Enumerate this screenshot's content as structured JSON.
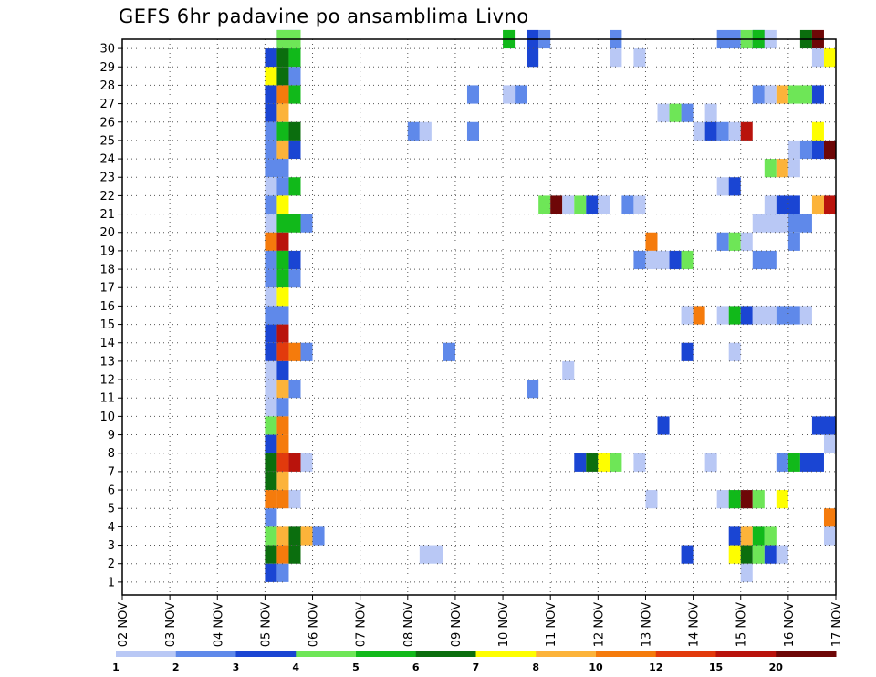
{
  "chart_data": {
    "type": "heatmap",
    "title": "GEFS 6hr padavine po ansamblima Livno",
    "x_ticks": [
      "02 NOV",
      "03 NOV",
      "04 NOV",
      "05 NOV",
      "06 NOV",
      "07 NOV",
      "08 NOV",
      "09 NOV",
      "10 NOV",
      "11 NOV",
      "12 NOV",
      "13 NOV",
      "14 NOV",
      "15 NOV",
      "16 NOV",
      "17 NOV"
    ],
    "y_ticks": [
      "1",
      "2",
      "3",
      "4",
      "5",
      "6",
      "7",
      "8",
      "9",
      "10",
      "11",
      "12",
      "13",
      "14",
      "15",
      "16",
      "17",
      "18",
      "19",
      "20",
      "21",
      "22",
      "23",
      "24",
      "25",
      "26",
      "27",
      "28",
      "29",
      "30"
    ],
    "x_range_days": [
      2,
      17
    ],
    "steps_per_day": 4,
    "colorbar": {
      "labels": [
        "1",
        "2",
        "3",
        "4",
        "5",
        "6",
        "7",
        "8",
        "10",
        "12",
        "15",
        "20"
      ],
      "colors": [
        "#b9c8f5",
        "#5f89ea",
        "#1a45d3",
        "#6ee657",
        "#11b91a",
        "#0b6e0e",
        "#fefe00",
        "#fcb33a",
        "#f57b0c",
        "#e23a0c",
        "#b9130c",
        "#6e0707"
      ]
    },
    "cells": [
      {
        "member": 30,
        "bands": [
          [
            13,
            2,
            2,
            1
          ]
        ]
      },
      {
        "member": 30,
        "bands": [
          [
            13,
            3,
            2,
            1
          ]
        ]
      },
      {
        "member": 30,
        "bands": [
          [
            34,
            0,
            1,
            1
          ],
          [
            35,
            1,
            1,
            1
          ]
        ]
      },
      {
        "member": 30,
        "bands": [
          [
            34,
            2,
            1,
            2
          ],
          [
            41,
            1,
            1,
            1
          ]
        ]
      },
      {
        "member": 30,
        "bands": [
          [
            32,
            4,
            1,
            1
          ],
          [
            50,
            1,
            2,
            1
          ],
          [
            52,
            3,
            1,
            1
          ],
          [
            53,
            2,
            1,
            1
          ]
        ]
      },
      {
        "member": 30,
        "bands": [
          [
            53,
            4,
            1,
            1
          ],
          [
            54,
            0,
            1,
            1
          ]
        ]
      },
      {
        "member": 30,
        "bands": [
          [
            57,
            5,
            1,
            1
          ],
          [
            58,
            11,
            1,
            1
          ]
        ]
      },
      {
        "member": 29,
        "bands": [
          [
            12,
            2,
            1,
            1
          ],
          [
            13,
            5,
            1,
            1
          ],
          [
            14,
            4,
            1,
            1
          ],
          [
            41,
            0,
            1,
            1
          ],
          [
            43,
            0,
            1,
            1
          ],
          [
            58,
            0,
            1,
            1
          ],
          [
            59,
            6,
            1,
            1
          ]
        ]
      },
      {
        "member": 28,
        "bands": [
          [
            12,
            6,
            1,
            1
          ],
          [
            13,
            5,
            1,
            1
          ],
          [
            14,
            1,
            1,
            1
          ]
        ]
      },
      {
        "member": 27,
        "bands": [
          [
            12,
            2,
            1,
            1
          ],
          [
            13,
            8,
            1,
            1
          ],
          [
            14,
            4,
            1,
            1
          ],
          [
            29,
            1,
            1,
            1
          ],
          [
            32,
            0,
            1,
            1
          ],
          [
            33,
            1,
            1,
            1
          ],
          [
            53,
            1,
            1,
            1
          ],
          [
            54,
            0,
            1,
            1
          ],
          [
            55,
            7,
            1,
            1
          ],
          [
            56,
            3,
            2,
            1
          ],
          [
            58,
            2,
            1,
            1
          ]
        ]
      },
      {
        "member": 26,
        "bands": [
          [
            12,
            2,
            1,
            1
          ],
          [
            13,
            7,
            1,
            1
          ],
          [
            45,
            0,
            1,
            1
          ],
          [
            46,
            3,
            1,
            1
          ],
          [
            47,
            1,
            1,
            1
          ],
          [
            49,
            0,
            1,
            1
          ]
        ]
      },
      {
        "member": 25,
        "bands": [
          [
            12,
            1,
            1,
            1
          ],
          [
            13,
            4,
            1,
            1
          ],
          [
            14,
            5,
            1,
            1
          ],
          [
            24,
            1,
            1,
            1
          ],
          [
            25,
            0,
            1,
            1
          ],
          [
            29,
            1,
            1,
            1
          ],
          [
            48,
            0,
            1,
            1
          ],
          [
            49,
            2,
            1,
            1
          ],
          [
            50,
            1,
            1,
            1
          ],
          [
            51,
            0,
            1,
            1
          ],
          [
            52,
            10,
            1,
            1
          ],
          [
            58,
            6,
            1,
            1
          ]
        ]
      },
      {
        "member": 24,
        "bands": [
          [
            12,
            1,
            1,
            1
          ],
          [
            13,
            7,
            1,
            1
          ],
          [
            14,
            2,
            1,
            1
          ],
          [
            56,
            0,
            1,
            1
          ],
          [
            57,
            1,
            1,
            1
          ],
          [
            58,
            2,
            1,
            1
          ],
          [
            59,
            11,
            1,
            1
          ]
        ]
      },
      {
        "member": 23,
        "bands": [
          [
            12,
            1,
            2,
            1
          ],
          [
            54,
            3,
            1,
            1
          ],
          [
            55,
            7,
            1,
            1
          ],
          [
            56,
            0,
            1,
            1
          ]
        ]
      },
      {
        "member": 22,
        "bands": [
          [
            12,
            0,
            1,
            1
          ],
          [
            13,
            1,
            1,
            1
          ],
          [
            14,
            4,
            1,
            1
          ],
          [
            50,
            0,
            1,
            1
          ],
          [
            51,
            2,
            1,
            1
          ]
        ]
      },
      {
        "member": 21,
        "bands": [
          [
            12,
            1,
            1,
            1
          ],
          [
            13,
            6,
            1,
            1
          ],
          [
            35,
            3,
            1,
            1
          ],
          [
            36,
            11,
            1,
            1
          ],
          [
            37,
            0,
            1,
            1
          ],
          [
            38,
            3,
            1,
            1
          ],
          [
            39,
            2,
            1,
            1
          ],
          [
            40,
            0,
            1,
            1
          ],
          [
            42,
            1,
            1,
            1
          ],
          [
            43,
            0,
            1,
            1
          ],
          [
            54,
            0,
            1,
            1
          ],
          [
            55,
            2,
            2,
            1
          ],
          [
            58,
            7,
            1,
            1
          ],
          [
            59,
            10,
            1,
            1
          ]
        ]
      },
      {
        "member": 20,
        "bands": [
          [
            12,
            0,
            1,
            1
          ],
          [
            13,
            4,
            2,
            1
          ],
          [
            15,
            1,
            1,
            1
          ],
          [
            53,
            0,
            3,
            1
          ],
          [
            56,
            1,
            2,
            1
          ]
        ]
      },
      {
        "member": 19,
        "bands": [
          [
            12,
            8,
            1,
            1
          ],
          [
            13,
            10,
            1,
            1
          ],
          [
            44,
            8,
            1,
            1
          ],
          [
            50,
            1,
            1,
            1
          ],
          [
            51,
            3,
            1,
            1
          ],
          [
            52,
            0,
            1,
            1
          ],
          [
            56,
            1,
            1,
            1
          ]
        ]
      },
      {
        "member": 18,
        "bands": [
          [
            12,
            1,
            1,
            1
          ],
          [
            13,
            4,
            1,
            1
          ],
          [
            14,
            2,
            1,
            1
          ],
          [
            43,
            1,
            1,
            1
          ],
          [
            44,
            0,
            2,
            1
          ],
          [
            46,
            2,
            1,
            1
          ],
          [
            47,
            3,
            1,
            1
          ],
          [
            53,
            1,
            2,
            1
          ]
        ]
      },
      {
        "member": 17,
        "bands": [
          [
            12,
            1,
            1,
            1
          ],
          [
            13,
            4,
            1,
            1
          ],
          [
            14,
            1,
            1,
            1
          ]
        ]
      },
      {
        "member": 16,
        "bands": [
          [
            12,
            0,
            1,
            1
          ],
          [
            13,
            6,
            1,
            1
          ]
        ]
      },
      {
        "member": 15,
        "bands": [
          [
            12,
            1,
            2,
            1
          ],
          [
            47,
            0,
            1,
            1
          ],
          [
            48,
            8,
            1,
            1
          ],
          [
            50,
            0,
            1,
            1
          ],
          [
            51,
            4,
            1,
            1
          ],
          [
            52,
            2,
            1,
            1
          ],
          [
            53,
            0,
            2,
            1
          ],
          [
            55,
            1,
            2,
            1
          ],
          [
            57,
            0,
            1,
            1
          ]
        ]
      },
      {
        "member": 14,
        "bands": [
          [
            12,
            2,
            1,
            1
          ],
          [
            13,
            10,
            1,
            1
          ]
        ]
      },
      {
        "member": 13,
        "bands": [
          [
            12,
            2,
            1,
            1
          ],
          [
            13,
            9,
            1,
            1
          ],
          [
            14,
            8,
            1,
            1
          ],
          [
            15,
            1,
            1,
            1
          ],
          [
            27,
            1,
            1,
            1
          ],
          [
            47,
            2,
            1,
            1
          ],
          [
            51,
            0,
            1,
            1
          ]
        ]
      },
      {
        "member": 12,
        "bands": [
          [
            12,
            0,
            1,
            1
          ],
          [
            13,
            2,
            1,
            1
          ],
          [
            37,
            0,
            1,
            1
          ]
        ]
      },
      {
        "member": 11,
        "bands": [
          [
            12,
            0,
            1,
            1
          ],
          [
            13,
            7,
            1,
            1
          ],
          [
            14,
            1,
            1,
            1
          ],
          [
            34,
            1,
            1,
            1
          ]
        ]
      },
      {
        "member": 10,
        "bands": [
          [
            12,
            0,
            1,
            1
          ],
          [
            13,
            1,
            1,
            1
          ]
        ]
      },
      {
        "member": 9,
        "bands": [
          [
            12,
            3,
            1,
            1
          ],
          [
            13,
            8,
            1,
            1
          ],
          [
            45,
            2,
            1,
            1
          ],
          [
            58,
            2,
            2,
            1
          ]
        ]
      },
      {
        "member": 8,
        "bands": [
          [
            12,
            2,
            1,
            1
          ],
          [
            13,
            8,
            1,
            1
          ],
          [
            59,
            0,
            1,
            1
          ]
        ]
      },
      {
        "member": 7,
        "bands": [
          [
            12,
            5,
            1,
            1
          ],
          [
            13,
            9,
            1,
            1
          ],
          [
            14,
            10,
            1,
            1
          ],
          [
            15,
            0,
            1,
            1
          ],
          [
            38,
            2,
            1,
            1
          ],
          [
            39,
            5,
            1,
            1
          ],
          [
            40,
            6,
            1,
            1
          ],
          [
            41,
            3,
            1,
            1
          ],
          [
            43,
            0,
            1,
            1
          ],
          [
            49,
            0,
            1,
            1
          ],
          [
            55,
            1,
            1,
            1
          ],
          [
            56,
            4,
            1,
            1
          ],
          [
            57,
            2,
            2,
            1
          ]
        ]
      },
      {
        "member": 6,
        "bands": [
          [
            12,
            5,
            1,
            1
          ],
          [
            13,
            7,
            1,
            1
          ]
        ]
      },
      {
        "member": 5,
        "bands": [
          [
            12,
            8,
            1,
            1
          ],
          [
            13,
            8,
            1,
            1
          ],
          [
            14,
            0,
            1,
            1
          ],
          [
            44,
            0,
            1,
            1
          ],
          [
            50,
            0,
            1,
            1
          ],
          [
            51,
            4,
            1,
            1
          ],
          [
            52,
            11,
            1,
            1
          ],
          [
            53,
            3,
            1,
            1
          ],
          [
            55,
            6,
            1,
            1
          ]
        ]
      },
      {
        "member": 4,
        "bands": [
          [
            12,
            1,
            1,
            1
          ],
          [
            59,
            8,
            1,
            1
          ]
        ]
      },
      {
        "member": 3,
        "bands": [
          [
            12,
            3,
            1,
            1
          ],
          [
            13,
            7,
            1,
            1
          ],
          [
            14,
            5,
            1,
            1
          ],
          [
            15,
            7,
            1,
            1
          ],
          [
            16,
            1,
            1,
            1
          ],
          [
            51,
            2,
            1,
            1
          ],
          [
            52,
            7,
            1,
            1
          ],
          [
            53,
            4,
            1,
            1
          ],
          [
            54,
            3,
            1,
            1
          ],
          [
            59,
            0,
            1,
            1
          ]
        ]
      },
      {
        "member": 2,
        "bands": [
          [
            12,
            5,
            1,
            1
          ],
          [
            13,
            8,
            1,
            1
          ],
          [
            14,
            5,
            1,
            1
          ],
          [
            25,
            0,
            2,
            1
          ],
          [
            47,
            2,
            1,
            1
          ],
          [
            51,
            6,
            1,
            1
          ],
          [
            52,
            5,
            1,
            1
          ],
          [
            53,
            3,
            1,
            1
          ],
          [
            54,
            2,
            1,
            1
          ],
          [
            55,
            0,
            1,
            1
          ]
        ]
      },
      {
        "member": 1,
        "bands": [
          [
            12,
            2,
            1,
            1
          ],
          [
            13,
            1,
            1,
            1
          ],
          [
            52,
            0,
            1,
            1
          ]
        ]
      }
    ]
  }
}
